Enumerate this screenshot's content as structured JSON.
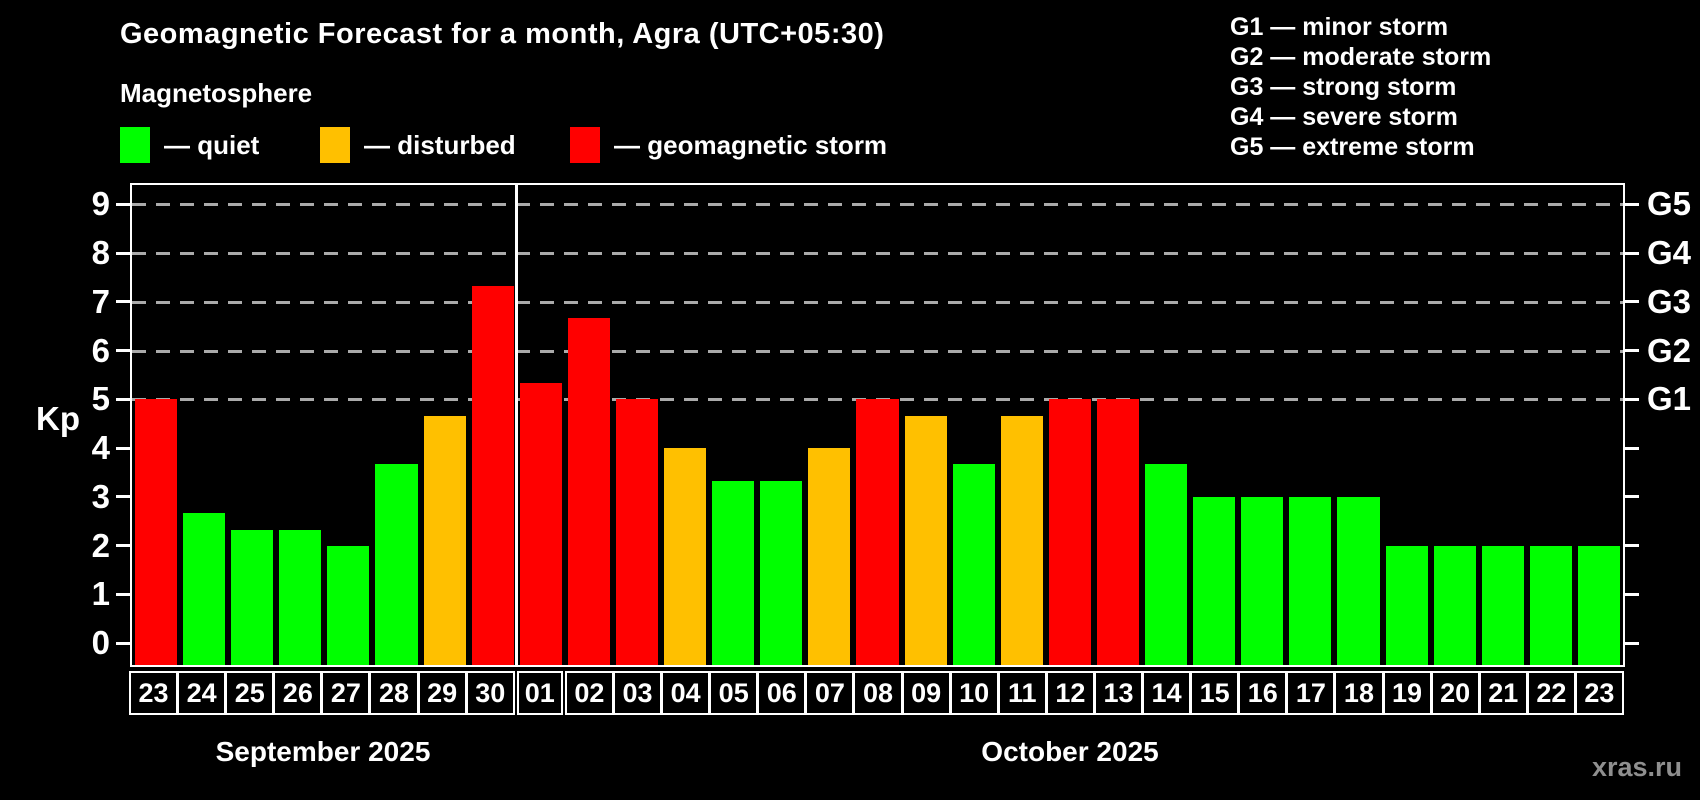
{
  "title": "Geomagnetic Forecast for a month, Agra (UTC+05:30)",
  "subtitle": "Magnetosphere",
  "watermark": "xras.ru",
  "colors": {
    "quiet": "#00ff00",
    "disturbed": "#ffc000",
    "storm": "#ff0000",
    "background": "#000000",
    "grid": "#aaaaaa",
    "axis": "#ffffff",
    "watermark": "#8f8f8f"
  },
  "legend": {
    "items": [
      {
        "status": "quiet",
        "label": "— quiet"
      },
      {
        "status": "disturbed",
        "label": "— disturbed"
      },
      {
        "status": "storm",
        "label": "— geomagnetic storm"
      }
    ]
  },
  "g_legend": [
    "G1 — minor storm",
    "G2 — moderate storm",
    "G3 — strong storm",
    "G4 — severe storm",
    "G5 — extreme storm"
  ],
  "axis": {
    "y_label": "Kp",
    "y_ticks": [
      0,
      1,
      2,
      3,
      4,
      5,
      6,
      7,
      8,
      9
    ],
    "grid_levels": [
      5,
      6,
      7,
      8,
      9
    ],
    "right_labels": [
      {
        "value": 5,
        "label": "G1"
      },
      {
        "value": 6,
        "label": "G2"
      },
      {
        "value": 7,
        "label": "G3"
      },
      {
        "value": 8,
        "label": "G4"
      },
      {
        "value": 9,
        "label": "G5"
      }
    ]
  },
  "months": [
    {
      "label": "September 2025",
      "start_index": 0,
      "end_index": 7
    },
    {
      "label": "October 2025",
      "start_index": 8,
      "end_index": 30
    }
  ],
  "chart_data": {
    "type": "bar",
    "title": "Geomagnetic Forecast for a month, Agra (UTC+05:30)",
    "xlabel": "",
    "ylabel": "Kp",
    "ylim": [
      0,
      9
    ],
    "grid": "horizontal dashed lines at Kp 5..9 (storm levels G1..G5)",
    "legend_position": "top-left",
    "categories": [
      "23",
      "24",
      "25",
      "26",
      "27",
      "28",
      "29",
      "30",
      "01",
      "02",
      "03",
      "04",
      "05",
      "06",
      "07",
      "08",
      "09",
      "10",
      "11",
      "12",
      "13",
      "14",
      "15",
      "16",
      "17",
      "18",
      "19",
      "20",
      "21",
      "22",
      "23"
    ],
    "values": [
      5.0,
      2.67,
      2.33,
      2.33,
      2.0,
      3.67,
      4.67,
      7.33,
      5.33,
      6.67,
      5.0,
      4.0,
      3.33,
      3.33,
      4.0,
      5.0,
      4.67,
      3.67,
      4.67,
      5.0,
      5.0,
      3.67,
      3.0,
      3.0,
      3.0,
      3.0,
      2.0,
      2.0,
      2.0,
      2.0,
      2.0
    ],
    "statuses": [
      "storm",
      "quiet",
      "quiet",
      "quiet",
      "quiet",
      "quiet",
      "disturbed",
      "storm",
      "storm",
      "storm",
      "storm",
      "disturbed",
      "quiet",
      "quiet",
      "disturbed",
      "storm",
      "disturbed",
      "quiet",
      "disturbed",
      "storm",
      "storm",
      "quiet",
      "quiet",
      "quiet",
      "quiet",
      "quiet",
      "quiet",
      "quiet",
      "quiet",
      "quiet",
      "quiet"
    ],
    "month_split_after_index": 7
  }
}
